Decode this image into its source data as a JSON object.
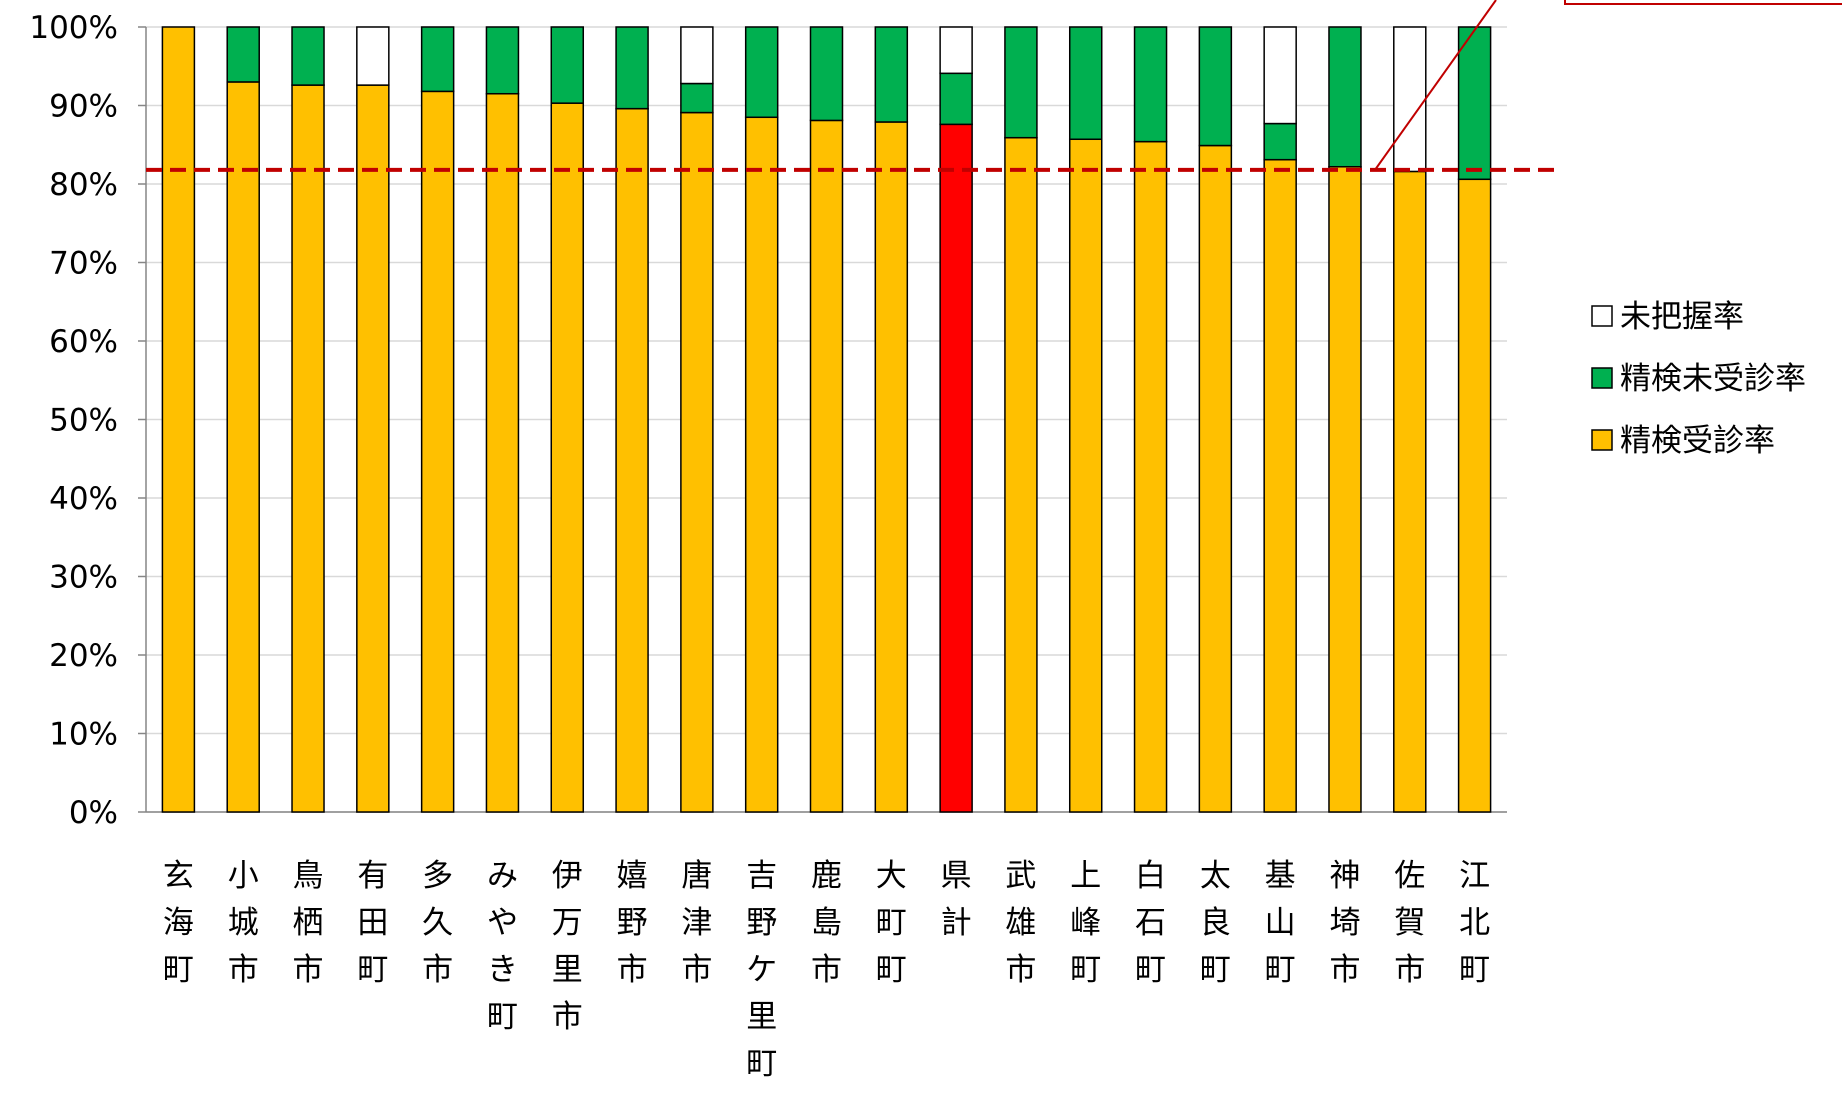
{
  "chart_data": {
    "type": "bar",
    "stacked": true,
    "categories": [
      "玄海町",
      "小城市",
      "鳥栖市",
      "有田町",
      "多久市",
      "みやき町",
      "伊万里市",
      "嬉野市",
      "唐津市",
      "吉野ケ里町",
      "鹿島市",
      "大町町",
      "県計",
      "武雄市",
      "上峰町",
      "白石町",
      "太良町",
      "基山町",
      "神埼市",
      "佐賀市",
      "江北町"
    ],
    "series": [
      {
        "name": "精検受診率",
        "color": "#FFC000",
        "values": [
          100,
          93.0,
          92.6,
          92.6,
          91.8,
          91.5,
          90.3,
          89.6,
          89.1,
          88.5,
          88.1,
          87.9,
          87.6,
          85.9,
          85.7,
          85.4,
          84.9,
          83.1,
          82.2,
          81.6,
          80.6
        ]
      },
      {
        "name": "精検未受診率",
        "color": "#00B050",
        "values": [
          0,
          7.0,
          7.4,
          0,
          8.2,
          8.5,
          9.7,
          10.4,
          3.7,
          11.5,
          11.9,
          12.1,
          6.5,
          14.1,
          14.3,
          14.6,
          15.1,
          4.6,
          17.8,
          0,
          19.4
        ]
      },
      {
        "name": "未把握率",
        "color": "#FFFFFF",
        "values": [
          0,
          0,
          0,
          7.4,
          0,
          0,
          0,
          0,
          7.2,
          0,
          0,
          0,
          5.9,
          0,
          0,
          0,
          0,
          12.3,
          0,
          18.4,
          0
        ]
      }
    ],
    "highlight": {
      "category": "県計",
      "color": "#FF0000"
    },
    "reference_line": {
      "value": 81.8,
      "color": "#C00000",
      "style": "dashed"
    },
    "yticks": [
      "0%",
      "10%",
      "20%",
      "30%",
      "40%",
      "50%",
      "60%",
      "70%",
      "80%",
      "90%",
      "100%"
    ],
    "ylim": [
      0,
      100
    ],
    "grid": true,
    "legend_position": "right",
    "legend": [
      {
        "label": "未把握率",
        "color": "#FFFFFF"
      },
      {
        "label": "精検未受診率",
        "color": "#00B050"
      },
      {
        "label": "精検受診率",
        "color": "#FFC000"
      }
    ],
    "xlabel": "",
    "ylabel": ""
  }
}
